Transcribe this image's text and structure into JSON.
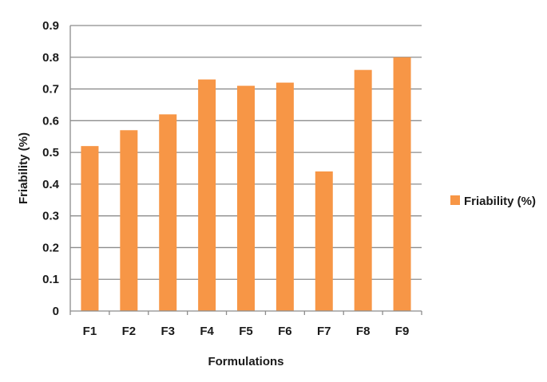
{
  "chart_data": {
    "type": "bar",
    "title": "",
    "xlabel": "Formulations",
    "ylabel": "Friability (%)",
    "categories": [
      "F1",
      "F2",
      "F3",
      "F4",
      "F5",
      "F6",
      "F7",
      "F8",
      "F9"
    ],
    "series": [
      {
        "name": "Friability (%)",
        "values": [
          0.52,
          0.57,
          0.62,
          0.73,
          0.71,
          0.72,
          0.44,
          0.76,
          0.8
        ],
        "color": "#f79646"
      }
    ],
    "ylim": [
      0,
      0.9
    ],
    "yticks": [
      "0",
      "0.1",
      "0.2",
      "0.3",
      "0.4",
      "0.5",
      "0.6",
      "0.7",
      "0.8",
      "0.9"
    ],
    "grid": true,
    "legend_position": "right"
  }
}
